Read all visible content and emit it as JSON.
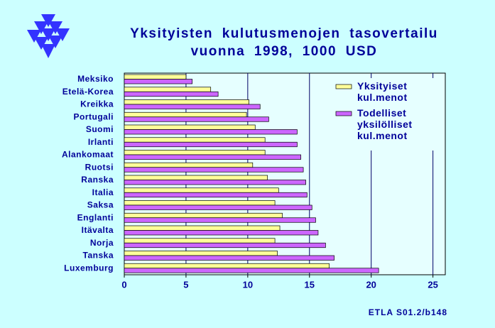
{
  "chart_data": {
    "type": "hbar",
    "title": [
      "Yksityisten kulutusmenojen tasovertailu",
      "vuonna 1998, 1000 USD"
    ],
    "categories": [
      "Meksiko",
      "Etelä-Korea",
      "Kreikka",
      "Portugali",
      "Suomi",
      "Irlanti",
      "Alankomaat",
      "Ruotsi",
      "Ranska",
      "Italia",
      "Saksa",
      "Englanti",
      "Itävalta",
      "Norja",
      "Tanska",
      "Luxemburg"
    ],
    "series": [
      {
        "name": "Yksityiset kul.menot",
        "color": "#ffff99",
        "values": [
          5.0,
          7.0,
          10.1,
          9.9,
          10.6,
          11.4,
          11.4,
          10.4,
          11.6,
          12.5,
          12.2,
          12.8,
          12.6,
          12.2,
          12.4,
          16.6
        ]
      },
      {
        "name": "Todelliset yksilölliset kul.menot",
        "color": "#cc66ff",
        "values": [
          5.5,
          7.6,
          11.0,
          11.7,
          14.0,
          14.0,
          14.3,
          14.5,
          14.7,
          14.8,
          15.2,
          15.5,
          15.7,
          16.3,
          17.0,
          20.6
        ]
      }
    ],
    "xlim": [
      0,
      26
    ],
    "xticks": [
      0,
      5,
      10,
      15,
      20,
      25
    ],
    "grid": true,
    "legend": "upper right",
    "source": "ETLA S01.2/b148"
  }
}
